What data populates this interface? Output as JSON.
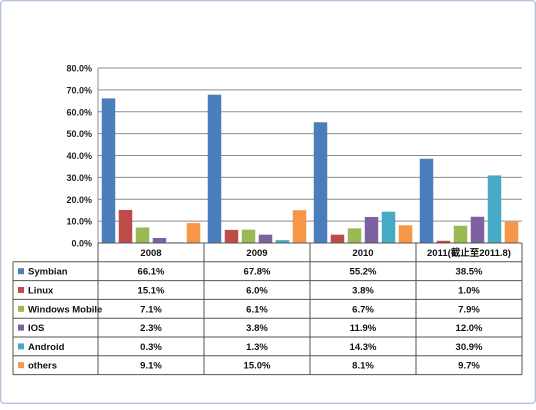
{
  "chart_data": {
    "type": "bar",
    "title": "",
    "xlabel": "",
    "ylabel": "",
    "ylim": [
      0,
      80
    ],
    "y_tick_values": [
      0,
      10,
      20,
      30,
      40,
      50,
      60,
      70,
      80
    ],
    "y_tick_labels": [
      "0.0%",
      "10.0%",
      "20.0%",
      "30.0%",
      "40.0%",
      "50.0%",
      "60.0%",
      "70.0%",
      "80.0%"
    ],
    "grid": true,
    "legend_placement": "data-table-left",
    "categories": [
      "2008",
      "2009",
      "2010",
      "2011(截止至2011.8)"
    ],
    "series": [
      {
        "name": "Symbian",
        "color": "#4a7ebb",
        "values": [
          66.1,
          67.8,
          55.2,
          38.5
        ],
        "labels": [
          "66.1%",
          "67.8%",
          "55.2%",
          "38.5%"
        ]
      },
      {
        "name": "Linux",
        "color": "#be4b48",
        "values": [
          15.1,
          6.0,
          3.8,
          1.0
        ],
        "labels": [
          "15.1%",
          "6.0%",
          "3.8%",
          "1.0%"
        ]
      },
      {
        "name": "Windows Mobile",
        "color": "#98b954",
        "values": [
          7.1,
          6.1,
          6.7,
          7.9
        ],
        "labels": [
          "7.1%",
          "6.1%",
          "6.7%",
          "7.9%"
        ]
      },
      {
        "name": "IOS",
        "color": "#7d60a0",
        "values": [
          2.3,
          3.8,
          11.9,
          12.0
        ],
        "labels": [
          "2.3%",
          "3.8%",
          "11.9%",
          "12.0%"
        ]
      },
      {
        "name": "Android",
        "color": "#46aac5",
        "values": [
          0.3,
          1.3,
          14.3,
          30.9
        ],
        "labels": [
          "0.3%",
          "1.3%",
          "14.3%",
          "30.9%"
        ]
      },
      {
        "name": "others",
        "color": "#f79646",
        "values": [
          9.1,
          15.0,
          8.1,
          9.7
        ],
        "labels": [
          "9.1%",
          "15.0%",
          "8.1%",
          "9.7%"
        ]
      }
    ]
  }
}
